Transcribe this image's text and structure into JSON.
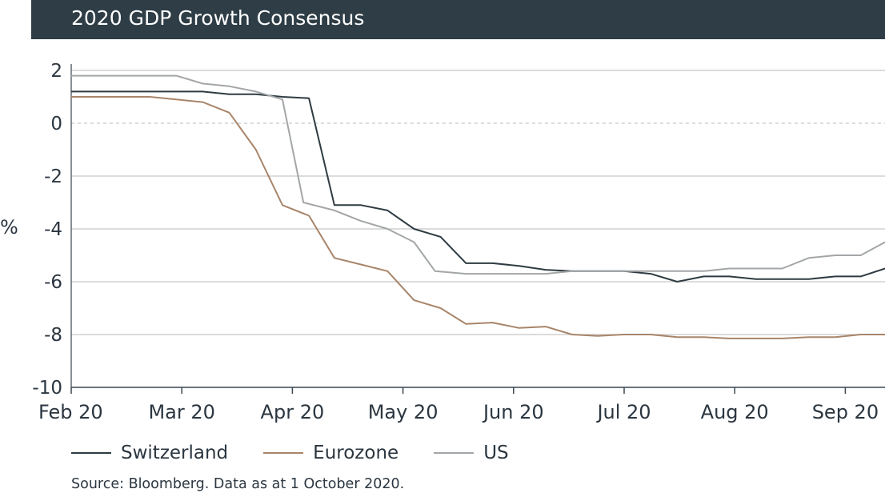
{
  "title": "2020 GDP Growth Consensus",
  "ylabel": "%",
  "source": "Source: Bloomberg. Data as at 1 October 2020.",
  "colors": {
    "title_bg": "#2e3d46",
    "switzerland": "#2e3b42",
    "eurozone": "#a8856a",
    "us": "#a3a6a8",
    "grid": "#c8c8c8",
    "zero_line": "#c8c8c8"
  },
  "chart_data": {
    "type": "line",
    "title": "2020 GDP Growth Consensus",
    "xlabel": "",
    "ylabel": "%",
    "x_ticks": [
      "Feb 20",
      "Mar 20",
      "Apr 20",
      "May 20",
      "Jun 20",
      "Jul 20",
      "Aug 20",
      "Sep 20"
    ],
    "x_range": [
      0,
      7.36
    ],
    "ylim": [
      -10,
      2
    ],
    "y_ticks": [
      2,
      0,
      -2,
      -4,
      -6,
      -8,
      -10
    ],
    "grid": "horizontal",
    "zero_line": "dashed",
    "legend_position": "bottom",
    "series": [
      {
        "name": "Switzerland",
        "color_key": "switzerland",
        "points": [
          [
            0,
            1.2
          ],
          [
            0.48,
            1.2
          ],
          [
            0.95,
            1.2
          ],
          [
            1.19,
            1.2
          ],
          [
            1.43,
            1.1
          ],
          [
            1.67,
            1.1
          ],
          [
            1.91,
            1.0
          ],
          [
            2.15,
            0.95
          ],
          [
            2.38,
            -3.1
          ],
          [
            2.62,
            -3.1
          ],
          [
            2.86,
            -3.3
          ],
          [
            3.1,
            -4.0
          ],
          [
            3.34,
            -4.3
          ],
          [
            3.57,
            -5.3
          ],
          [
            3.81,
            -5.3
          ],
          [
            4.05,
            -5.4
          ],
          [
            4.29,
            -5.55
          ],
          [
            4.53,
            -5.6
          ],
          [
            4.76,
            -5.6
          ],
          [
            5.0,
            -5.6
          ],
          [
            5.24,
            -5.7
          ],
          [
            5.48,
            -6.0
          ],
          [
            5.72,
            -5.8
          ],
          [
            5.95,
            -5.8
          ],
          [
            6.19,
            -5.9
          ],
          [
            6.43,
            -5.9
          ],
          [
            6.67,
            -5.9
          ],
          [
            6.91,
            -5.8
          ],
          [
            7.14,
            -5.8
          ],
          [
            7.38,
            -5.5
          ],
          [
            7.36,
            -5.5
          ]
        ]
      },
      {
        "name": "Eurozone",
        "color_key": "eurozone",
        "points": [
          [
            0,
            1.0
          ],
          [
            0.48,
            1.0
          ],
          [
            0.71,
            1.0
          ],
          [
            0.95,
            0.9
          ],
          [
            1.19,
            0.8
          ],
          [
            1.43,
            0.4
          ],
          [
            1.67,
            -1.0
          ],
          [
            1.91,
            -3.1
          ],
          [
            2.15,
            -3.5
          ],
          [
            2.38,
            -5.1
          ],
          [
            2.62,
            -5.35
          ],
          [
            2.86,
            -5.6
          ],
          [
            3.1,
            -6.7
          ],
          [
            3.34,
            -7.0
          ],
          [
            3.57,
            -7.6
          ],
          [
            3.81,
            -7.55
          ],
          [
            4.05,
            -7.75
          ],
          [
            4.29,
            -7.7
          ],
          [
            4.53,
            -8.0
          ],
          [
            4.76,
            -8.05
          ],
          [
            5.0,
            -8.0
          ],
          [
            5.24,
            -8.0
          ],
          [
            5.48,
            -8.1
          ],
          [
            5.72,
            -8.1
          ],
          [
            5.95,
            -8.15
          ],
          [
            6.19,
            -8.15
          ],
          [
            6.43,
            -8.15
          ],
          [
            6.67,
            -8.1
          ],
          [
            6.91,
            -8.1
          ],
          [
            7.14,
            -8.0
          ],
          [
            7.36,
            -8.0
          ]
        ]
      },
      {
        "name": "US",
        "color_key": "us",
        "points": [
          [
            0,
            1.8
          ],
          [
            0.48,
            1.8
          ],
          [
            0.95,
            1.8
          ],
          [
            1.19,
            1.5
          ],
          [
            1.43,
            1.4
          ],
          [
            1.67,
            1.2
          ],
          [
            1.91,
            0.9
          ],
          [
            2.1,
            -3.0
          ],
          [
            2.38,
            -3.3
          ],
          [
            2.62,
            -3.7
          ],
          [
            2.86,
            -4.0
          ],
          [
            3.1,
            -4.5
          ],
          [
            3.29,
            -5.6
          ],
          [
            3.57,
            -5.7
          ],
          [
            3.81,
            -5.7
          ],
          [
            4.05,
            -5.7
          ],
          [
            4.29,
            -5.7
          ],
          [
            4.53,
            -5.6
          ],
          [
            4.76,
            -5.6
          ],
          [
            5.0,
            -5.6
          ],
          [
            5.24,
            -5.6
          ],
          [
            5.48,
            -5.6
          ],
          [
            5.72,
            -5.6
          ],
          [
            5.95,
            -5.5
          ],
          [
            6.19,
            -5.5
          ],
          [
            6.43,
            -5.5
          ],
          [
            6.67,
            -5.1
          ],
          [
            6.91,
            -5.0
          ],
          [
            7.14,
            -5.0
          ],
          [
            7.36,
            -4.5
          ]
        ]
      }
    ]
  }
}
